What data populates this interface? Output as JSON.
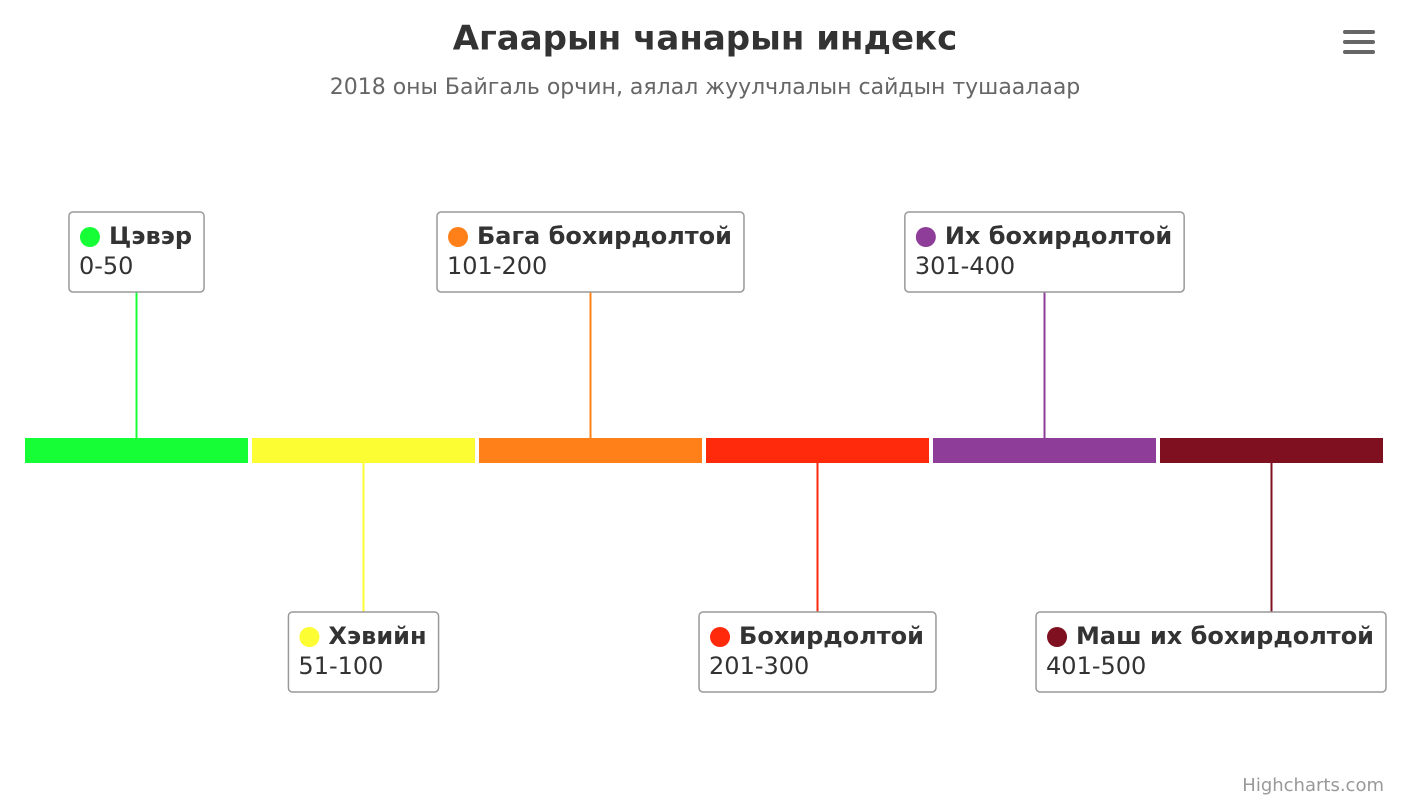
{
  "chart_data": {
    "type": "timeline",
    "title": "Агаарын чанарын индекс",
    "subtitle": "2018 оны Байгаль орчин, аялал жуулчлалын сайдын тушаалаар",
    "events": [
      {
        "name": "Цэвэр",
        "description": "0-50",
        "color": "#16ff36"
      },
      {
        "name": "Хэвийн",
        "description": "51-100",
        "color": "#fdfd33"
      },
      {
        "name": "Бага бохирдолтой",
        "description": "101-200",
        "color": "#ff8019"
      },
      {
        "name": "Бохирдолтой",
        "description": "201-300",
        "color": "#ff2a0c"
      },
      {
        "name": "Их бохирдолтой",
        "description": "301-400",
        "color": "#8e3e99"
      },
      {
        "name": "Маш их бохирдолтой",
        "description": "401-500",
        "color": "#7e1020"
      }
    ],
    "credits": "Highcharts.com"
  }
}
